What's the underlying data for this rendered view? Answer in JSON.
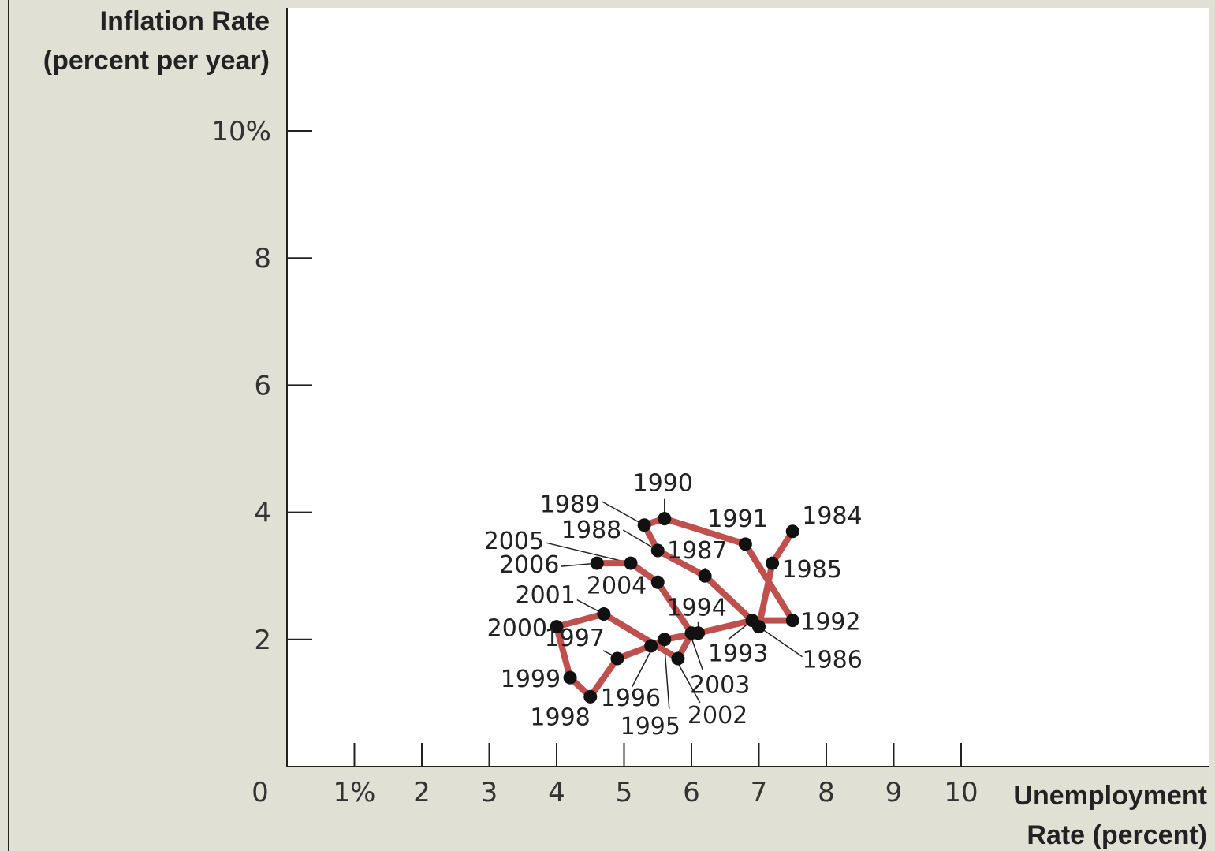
{
  "chart_data": {
    "type": "line",
    "xlabel": [
      "Unemployment",
      "Rate (percent)"
    ],
    "ylabel": [
      "Inflation Rate",
      "(percent per year)"
    ],
    "xlim": [
      0,
      13.7
    ],
    "ylim": [
      0,
      12
    ],
    "x_ticks": [
      {
        "value": 1,
        "label": "1%"
      },
      {
        "value": 2,
        "label": "2"
      },
      {
        "value": 3,
        "label": "3"
      },
      {
        "value": 4,
        "label": "4"
      },
      {
        "value": 5,
        "label": "5"
      },
      {
        "value": 6,
        "label": "6"
      },
      {
        "value": 7,
        "label": "7"
      },
      {
        "value": 8,
        "label": "8"
      },
      {
        "value": 9,
        "label": "9"
      },
      {
        "value": 10,
        "label": "10"
      }
    ],
    "y_ticks": [
      {
        "value": 2,
        "label": "2"
      },
      {
        "value": 4,
        "label": "4"
      },
      {
        "value": 6,
        "label": "6"
      },
      {
        "value": 8,
        "label": "8"
      },
      {
        "value": 10,
        "label": "10%"
      }
    ],
    "origin_label": "0",
    "grid": false,
    "series_color": "#c0504d",
    "points": [
      {
        "year": "1984",
        "x": 7.5,
        "y": 3.7
      },
      {
        "year": "1985",
        "x": 7.2,
        "y": 3.2
      },
      {
        "year": "1986",
        "x": 7.0,
        "y": 2.2
      },
      {
        "year": "1987",
        "x": 6.2,
        "y": 3.0
      },
      {
        "year": "1988",
        "x": 5.5,
        "y": 3.4
      },
      {
        "year": "1989",
        "x": 5.3,
        "y": 3.8
      },
      {
        "year": "1990",
        "x": 5.6,
        "y": 3.9
      },
      {
        "year": "1991",
        "x": 6.8,
        "y": 3.5
      },
      {
        "year": "1992",
        "x": 7.5,
        "y": 2.3
      },
      {
        "year": "1993",
        "x": 6.9,
        "y": 2.3
      },
      {
        "year": "1994",
        "x": 6.1,
        "y": 2.1
      },
      {
        "year": "1995",
        "x": 5.6,
        "y": 2.0
      },
      {
        "year": "1996",
        "x": 5.4,
        "y": 1.9
      },
      {
        "year": "1997",
        "x": 4.9,
        "y": 1.7
      },
      {
        "year": "1998",
        "x": 4.5,
        "y": 1.1
      },
      {
        "year": "1999",
        "x": 4.2,
        "y": 1.4
      },
      {
        "year": "2000",
        "x": 4.0,
        "y": 2.2
      },
      {
        "year": "2001",
        "x": 4.7,
        "y": 2.4
      },
      {
        "year": "2002",
        "x": 5.8,
        "y": 1.7
      },
      {
        "year": "2003",
        "x": 6.0,
        "y": 2.1
      },
      {
        "year": "2004",
        "x": 5.5,
        "y": 2.9
      },
      {
        "year": "2005",
        "x": 5.1,
        "y": 3.2
      },
      {
        "year": "2006",
        "x": 4.6,
        "y": 3.2
      }
    ]
  }
}
